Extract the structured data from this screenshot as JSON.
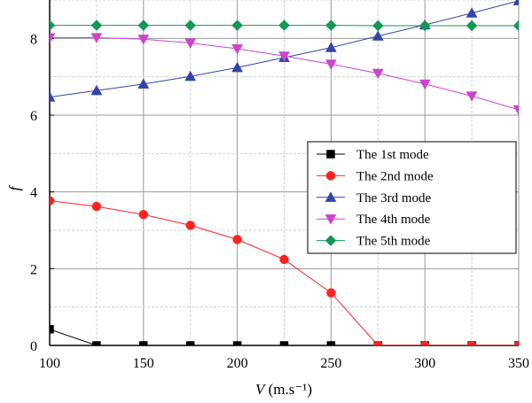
{
  "chart_data": {
    "type": "line",
    "title": "",
    "xlabel_main": "V",
    "xlabel_unit": " (m.s⁻¹)",
    "ylabel": "f",
    "xlim": [
      100,
      350
    ],
    "ylim": [
      0,
      9
    ],
    "xticks": [
      100,
      150,
      200,
      250,
      300,
      350
    ],
    "yticks": [
      0,
      2,
      4,
      6,
      8
    ],
    "grid": true,
    "legend_position": "center-right",
    "x": [
      100,
      125,
      150,
      175,
      200,
      225,
      250,
      275,
      300,
      325,
      350
    ],
    "series": [
      {
        "name": "The 1st mode",
        "color": "#000000",
        "marker": "square",
        "values": [
          0.42,
          0.0,
          0.0,
          0.0,
          0.0,
          0.0,
          0.0,
          0.0,
          0.0,
          0.0,
          0.0
        ]
      },
      {
        "name": "The 2nd mode",
        "color": "#ff2222",
        "marker": "circle",
        "values": [
          3.77,
          3.62,
          3.41,
          3.13,
          2.76,
          2.24,
          1.37,
          0.0,
          0.0,
          0.0,
          0.0
        ]
      },
      {
        "name": "The 3rd mode",
        "color": "#3344aa",
        "marker": "triangle-up",
        "values": [
          6.47,
          6.64,
          6.81,
          7.01,
          7.24,
          7.5,
          7.76,
          8.06,
          8.35,
          8.66,
          8.98
        ]
      },
      {
        "name": "The 4th mode",
        "color": "#cc44cc",
        "marker": "triangle-down",
        "values": [
          8.02,
          8.02,
          7.98,
          7.88,
          7.73,
          7.54,
          7.33,
          7.09,
          6.81,
          6.5,
          6.14
        ]
      },
      {
        "name": "The 5th mode",
        "color": "#119955",
        "marker": "diamond",
        "values": [
          8.34,
          8.34,
          8.34,
          8.34,
          8.34,
          8.34,
          8.34,
          8.33,
          8.33,
          8.33,
          8.33
        ]
      }
    ]
  }
}
